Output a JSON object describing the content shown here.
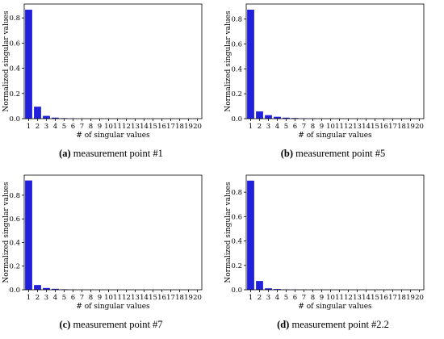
{
  "chart_data": [
    {
      "type": "bar",
      "caption_label": "(a)",
      "caption_text": " measurement point #1",
      "xlabel": "# of singular values",
      "ylabel": "Normalized singular values",
      "categories": [
        "1",
        "2",
        "3",
        "4",
        "5",
        "6",
        "7",
        "8",
        "9",
        "10",
        "11",
        "12",
        "13",
        "14",
        "15",
        "16",
        "17",
        "18",
        "19",
        "20"
      ],
      "values": [
        0.865,
        0.095,
        0.022,
        0.008,
        0.004,
        0.002,
        0.001,
        0.001,
        0.0005,
        0.0005,
        0,
        0,
        0,
        0,
        0,
        0,
        0,
        0,
        0,
        0
      ],
      "yticks": [
        "0.0",
        "0.2",
        "0.4",
        "0.6",
        "0.8"
      ],
      "ylim": [
        0,
        0.91
      ],
      "color": "#2020dd"
    },
    {
      "type": "bar",
      "caption_label": "(b)",
      "caption_text": " measurement point #5",
      "xlabel": "# of singular values",
      "ylabel": "Normalized singular values",
      "categories": [
        "1",
        "2",
        "3",
        "4",
        "5",
        "6",
        "7",
        "8",
        "9",
        "10",
        "11",
        "12",
        "13",
        "14",
        "15",
        "16",
        "17",
        "18",
        "19",
        "20"
      ],
      "values": [
        0.875,
        0.058,
        0.028,
        0.015,
        0.008,
        0.005,
        0.003,
        0.002,
        0.001,
        0.001,
        0.0005,
        0,
        0,
        0,
        0,
        0,
        0,
        0,
        0,
        0
      ],
      "yticks": [
        "0.0",
        "0.2",
        "0.4",
        "0.6",
        "0.8"
      ],
      "ylim": [
        0,
        0.92
      ],
      "color": "#2020dd"
    },
    {
      "type": "bar",
      "caption_label": "(c)",
      "caption_text": " measurement point #7",
      "xlabel": "# of singular values",
      "ylabel": "Normalized singular values",
      "categories": [
        "1",
        "2",
        "3",
        "4",
        "5",
        "6",
        "7",
        "8",
        "9",
        "10",
        "11",
        "12",
        "13",
        "14",
        "15",
        "16",
        "17",
        "18",
        "19",
        "20"
      ],
      "values": [
        0.925,
        0.04,
        0.015,
        0.008,
        0.004,
        0.002,
        0.001,
        0.001,
        0.0005,
        0,
        0,
        0,
        0,
        0,
        0,
        0,
        0,
        0,
        0,
        0
      ],
      "yticks": [
        "0.0",
        "0.2",
        "0.4",
        "0.6",
        "0.8"
      ],
      "ylim": [
        0,
        0.97
      ],
      "color": "#2020dd"
    },
    {
      "type": "bar",
      "caption_label": "(d)",
      "caption_text": " measurement point #2.2",
      "xlabel": "# of singular values",
      "ylabel": "Normalized singular values",
      "categories": [
        "1",
        "2",
        "3",
        "4",
        "5",
        "6",
        "7",
        "8",
        "9",
        "10",
        "11",
        "12",
        "13",
        "14",
        "15",
        "16",
        "17",
        "18",
        "19",
        "20"
      ],
      "values": [
        0.895,
        0.072,
        0.012,
        0.006,
        0.003,
        0.002,
        0.001,
        0.001,
        0.0005,
        0,
        0,
        0,
        0,
        0,
        0,
        0,
        0,
        0,
        0,
        0
      ],
      "yticks": [
        "0.0",
        "0.2",
        "0.4",
        "0.6",
        "0.8"
      ],
      "ylim": [
        0,
        0.94
      ],
      "color": "#2020dd"
    }
  ]
}
